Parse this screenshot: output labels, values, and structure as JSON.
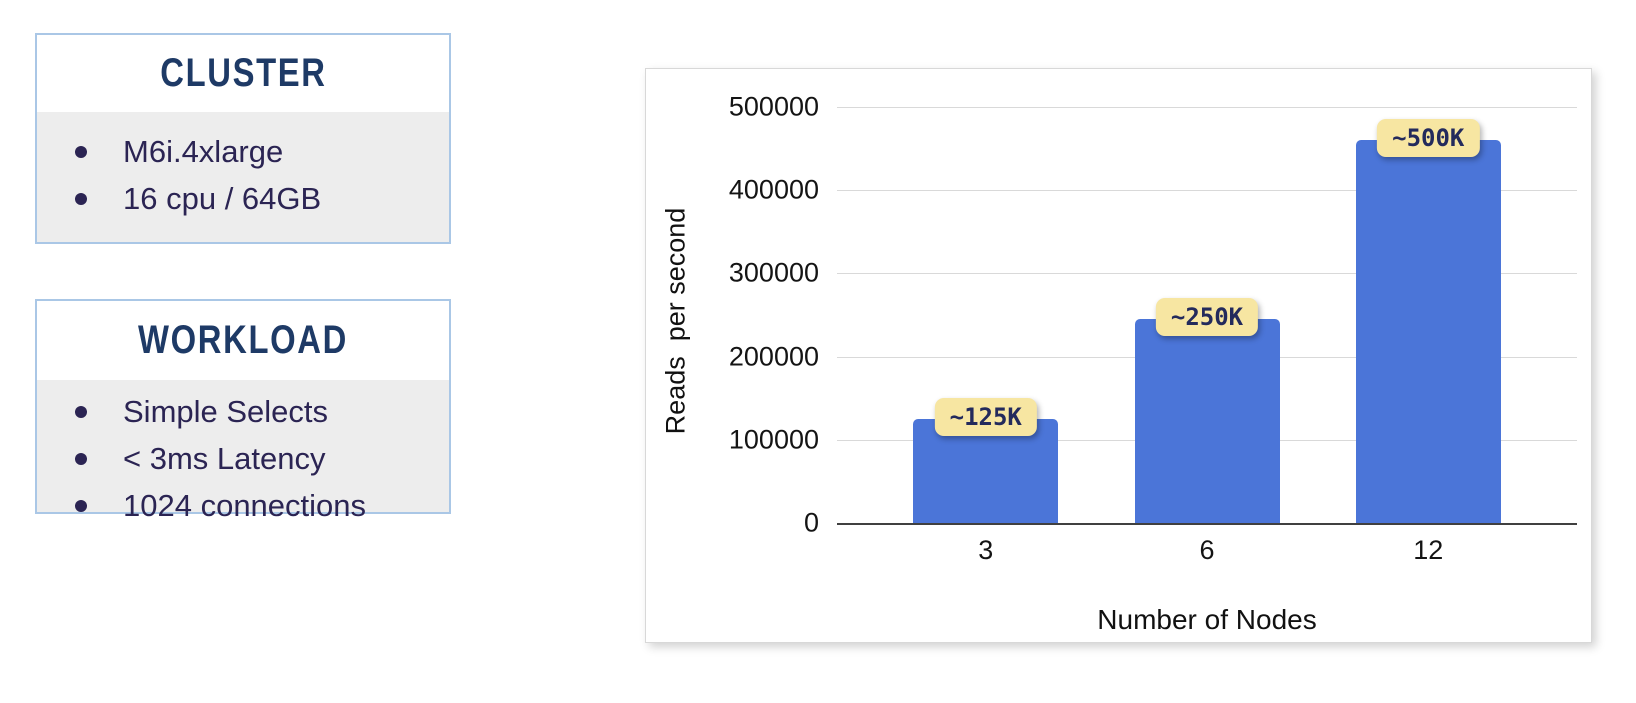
{
  "info_boxes": [
    {
      "title": "CLUSTER",
      "items": [
        "M6i.4xlarge",
        "16 cpu / 64GB"
      ]
    },
    {
      "title": "WORKLOAD",
      "items": [
        "Simple Selects",
        "< 3ms Latency",
        "1024 connections"
      ]
    }
  ],
  "chart_data": {
    "type": "bar",
    "title": "",
    "categories": [
      "3",
      "6",
      "12"
    ],
    "values": [
      125000,
      245000,
      460000
    ],
    "bar_labels": [
      "~125K",
      "~250K",
      "~500K"
    ],
    "xlabel": "Number of Nodes",
    "ylabel": "Reads  per second",
    "ylim": [
      0,
      500000
    ],
    "ytick_interval": 100000,
    "yticks": [
      "0",
      "100000",
      "200000",
      "300000",
      "400000",
      "500000"
    ],
    "grid": true,
    "legend": "none"
  },
  "colors": {
    "bar": "#4b75d8",
    "badge_bg": "#f7e6a2",
    "badge_text": "#232a5c",
    "box_border": "#aac7e6",
    "box_title": "#1e3a66",
    "box_text": "#2b2453",
    "box_body_bg": "#ededed",
    "gridline": "#d9d9d9",
    "axis_line": "#404040"
  }
}
